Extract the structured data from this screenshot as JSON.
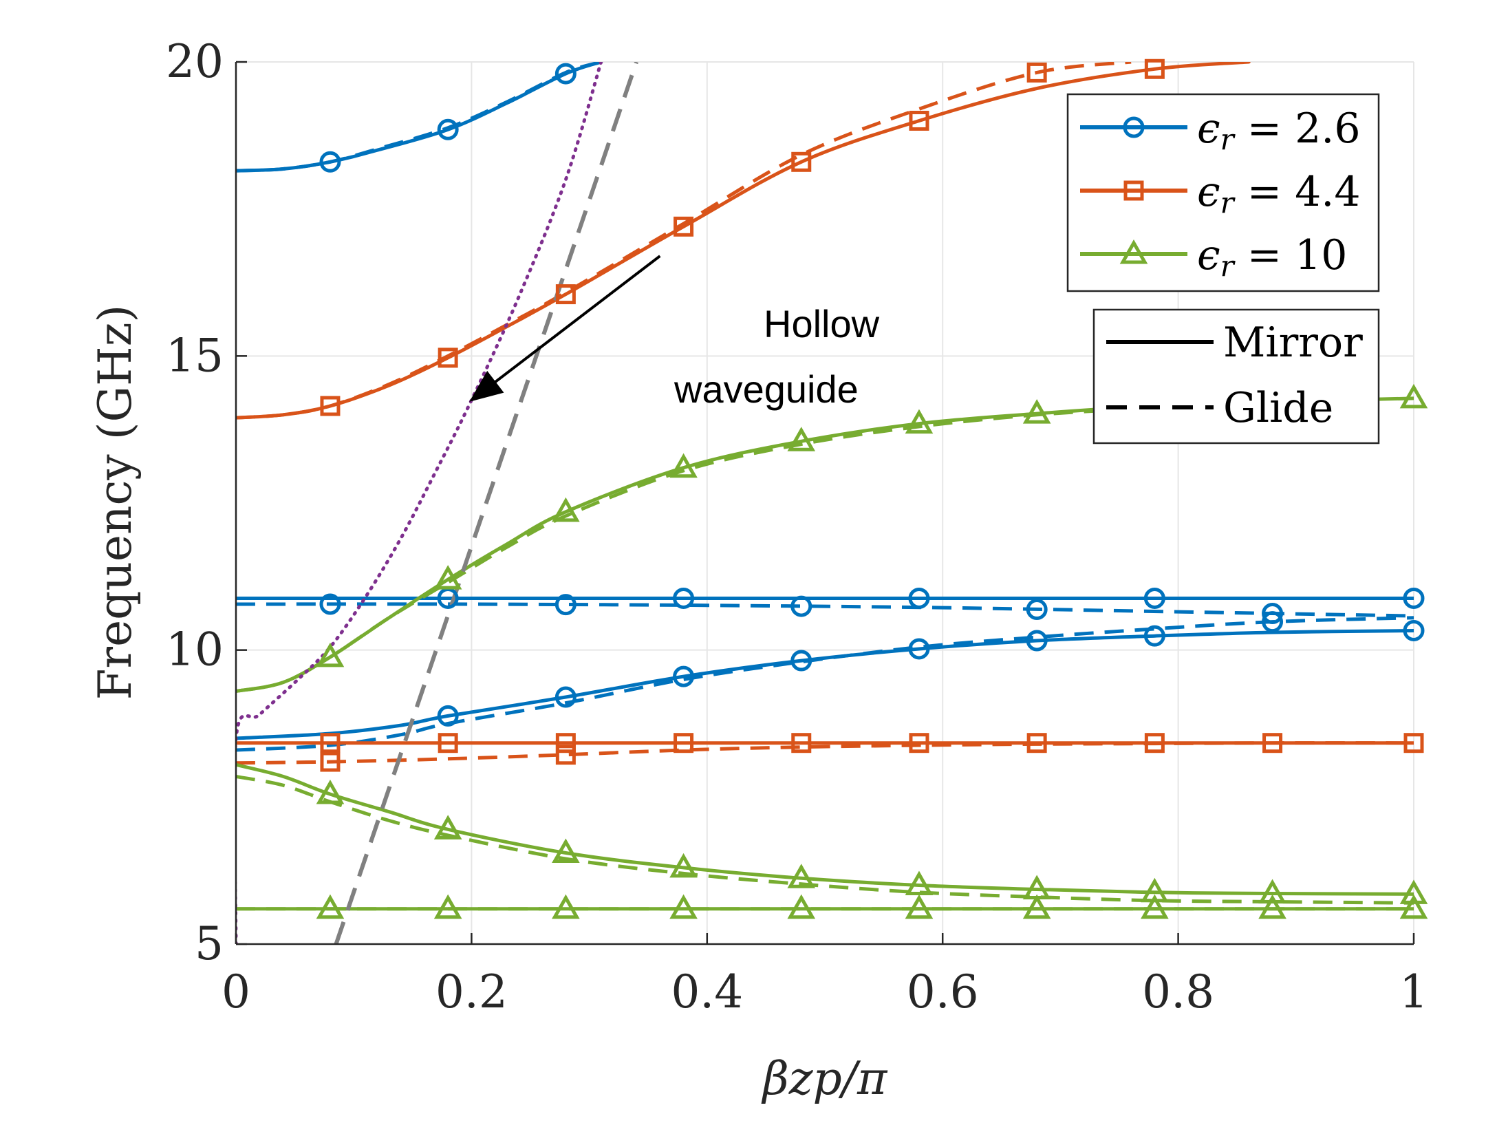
{
  "chart_data": {
    "type": "line",
    "title": "",
    "xlabel": "βzp/π",
    "ylabel": "Frequency (GHz)",
    "xlim": [
      0,
      1
    ],
    "ylim": [
      5,
      20
    ],
    "xticks": [
      0,
      0.2,
      0.4,
      0.6,
      0.8,
      1
    ],
    "yticks": [
      5,
      10,
      15,
      20
    ],
    "xtick_labels": [
      "0",
      "0.2",
      "0.4",
      "0.6",
      "0.8",
      "1"
    ],
    "ytick_labels": [
      "5",
      "10",
      "15",
      "20"
    ],
    "grid": true,
    "colors": {
      "er26": "#0072BD",
      "er44": "#D95319",
      "er10": "#77AC30",
      "hollow": "#7E2F8E",
      "light": "#808080"
    },
    "legend_materials": [
      {
        "label": "ϵr = 2.6",
        "prefix": "ϵ",
        "sub": "r",
        "value": "= 2.6",
        "color": "#0072BD",
        "marker": "circle"
      },
      {
        "label": "ϵr = 4.4",
        "prefix": "ϵ",
        "sub": "r",
        "value": "= 4.4",
        "color": "#D95319",
        "marker": "square"
      },
      {
        "label": "ϵr = 10",
        "prefix": "ϵ",
        "sub": "r",
        "value": "= 10",
        "color": "#77AC30",
        "marker": "triangle"
      }
    ],
    "legend_styles": [
      {
        "label": "Mirror",
        "dash": "solid"
      },
      {
        "label": "Glide",
        "dash": "dashed"
      }
    ],
    "annotation": {
      "line1": "Hollow",
      "line2": "waveguide",
      "arrow_from": [
        0.36,
        16.7
      ],
      "arrow_to": [
        0.2,
        14.25
      ]
    },
    "marker_x": [
      0,
      0.08,
      0.18,
      0.28,
      0.38,
      0.48,
      0.58,
      0.68,
      0.78,
      0.88,
      0.98,
      1.0
    ],
    "series": [
      {
        "name": "ϵr=2.6 Mirror mode 1",
        "material": "2.6",
        "style": "solid",
        "marker": "circle",
        "color": "#0072BD",
        "x": [
          0,
          0.04,
          0.08,
          0.12,
          0.18,
          0.23,
          0.28,
          0.31
        ],
        "y": [
          18.15,
          18.18,
          18.3,
          18.5,
          18.85,
          19.3,
          19.8,
          20.0
        ],
        "markers": [
          0.08,
          0.18,
          0.28
        ]
      },
      {
        "name": "ϵr=2.6 Glide mode 1",
        "material": "2.6",
        "style": "dashed",
        "marker": "circle",
        "color": "#0072BD",
        "x": [
          0,
          0.04,
          0.08,
          0.12,
          0.18,
          0.23,
          0.28,
          0.31
        ],
        "y": [
          18.15,
          18.18,
          18.3,
          18.52,
          18.88,
          19.32,
          19.82,
          20.0
        ],
        "markers": []
      },
      {
        "name": "ϵr=2.6 Mirror flat",
        "material": "2.6",
        "style": "solid",
        "marker": "circle",
        "color": "#0072BD",
        "x": [
          0,
          0.2,
          0.4,
          0.6,
          0.8,
          1.0
        ],
        "y": [
          10.88,
          10.88,
          10.88,
          10.88,
          10.88,
          10.88
        ],
        "markers": [
          0.18,
          0.38,
          0.58,
          0.78,
          1.0
        ]
      },
      {
        "name": "ϵr=2.6 Glide flat",
        "material": "2.6",
        "style": "dashed",
        "marker": "circle",
        "color": "#0072BD",
        "x": [
          0,
          0.2,
          0.4,
          0.6,
          0.8,
          1.0
        ],
        "y": [
          10.78,
          10.78,
          10.76,
          10.72,
          10.65,
          10.58
        ],
        "markers": [
          0.08,
          0.28,
          0.48,
          0.68,
          0.88
        ]
      },
      {
        "name": "ϵr=2.6 Mirror mode 2",
        "material": "2.6",
        "style": "solid",
        "marker": "circle",
        "color": "#0072BD",
        "x": [
          0,
          0.08,
          0.14,
          0.18,
          0.28,
          0.38,
          0.48,
          0.58,
          0.68,
          0.78,
          0.88,
          1.0
        ],
        "y": [
          8.5,
          8.58,
          8.72,
          8.88,
          9.2,
          9.55,
          9.82,
          10.02,
          10.16,
          10.24,
          10.3,
          10.33
        ],
        "markers": [
          0.18,
          0.28,
          0.38,
          0.48,
          0.58,
          0.68,
          0.78,
          1.0
        ]
      },
      {
        "name": "ϵr=2.6 Glide mode 2",
        "material": "2.6",
        "style": "dashed",
        "marker": "circle",
        "color": "#0072BD",
        "x": [
          0,
          0.08,
          0.14,
          0.18,
          0.28,
          0.38,
          0.48,
          0.58,
          0.68,
          0.78,
          0.88,
          1.0
        ],
        "y": [
          8.3,
          8.38,
          8.56,
          8.75,
          9.1,
          9.5,
          9.8,
          10.05,
          10.22,
          10.36,
          10.48,
          10.55
        ],
        "markers": [
          0.88
        ]
      },
      {
        "name": "ϵr=4.4 Mirror mode 1",
        "material": "4.4",
        "style": "solid",
        "marker": "square",
        "color": "#D95319",
        "x": [
          0,
          0.04,
          0.08,
          0.13,
          0.18,
          0.23,
          0.28,
          0.38,
          0.48,
          0.58,
          0.68,
          0.78,
          0.86
        ],
        "y": [
          13.95,
          14.0,
          14.15,
          14.5,
          14.97,
          15.5,
          16.05,
          17.2,
          18.3,
          19.0,
          19.55,
          19.88,
          20.0
        ],
        "markers": [
          0.08,
          0.18,
          0.28,
          0.38,
          0.48,
          0.58,
          0.78
        ]
      },
      {
        "name": "ϵr=4.4 Glide mode 1",
        "material": "4.4",
        "style": "dashed",
        "marker": "square",
        "color": "#D95319",
        "x": [
          0,
          0.04,
          0.08,
          0.13,
          0.18,
          0.23,
          0.28,
          0.38,
          0.48,
          0.58,
          0.68,
          0.76
        ],
        "y": [
          13.95,
          14.0,
          14.15,
          14.52,
          15.0,
          15.53,
          16.08,
          17.25,
          18.42,
          19.2,
          19.82,
          20.0
        ],
        "markers": [
          0.68
        ]
      },
      {
        "name": "ϵr=4.4 Mirror flat",
        "material": "4.4",
        "style": "solid",
        "marker": "square",
        "color": "#D95319",
        "x": [
          0,
          0.1,
          0.2,
          0.4,
          0.6,
          0.8,
          1.0
        ],
        "y": [
          8.42,
          8.42,
          8.42,
          8.42,
          8.42,
          8.42,
          8.42
        ],
        "markers": [
          0.08,
          0.18,
          0.28,
          0.38,
          0.48,
          0.58,
          0.68,
          0.78,
          0.88,
          1.0
        ]
      },
      {
        "name": "ϵr=4.4 Glide mode",
        "material": "4.4",
        "style": "dashed",
        "marker": "square",
        "color": "#D95319",
        "x": [
          0,
          0.08,
          0.18,
          0.28,
          0.38,
          0.48,
          0.58,
          0.68,
          0.78,
          0.88,
          1.0
        ],
        "y": [
          8.08,
          8.1,
          8.15,
          8.22,
          8.3,
          8.35,
          8.38,
          8.4,
          8.41,
          8.42,
          8.42
        ],
        "markers": [
          0.08,
          0.28
        ]
      },
      {
        "name": "ϵr=10 Mirror mode 1",
        "material": "10",
        "style": "solid",
        "marker": "triangle",
        "color": "#77AC30",
        "x": [
          0,
          0.04,
          0.08,
          0.13,
          0.18,
          0.23,
          0.28,
          0.38,
          0.48,
          0.58,
          0.68,
          0.78,
          0.88,
          1.0
        ],
        "y": [
          9.3,
          9.45,
          9.88,
          10.55,
          11.2,
          11.8,
          12.35,
          13.1,
          13.55,
          13.85,
          14.02,
          14.15,
          14.22,
          14.28
        ],
        "markers": [
          0.08,
          0.18,
          0.28,
          0.38,
          0.48,
          0.58,
          0.68,
          1.0
        ]
      },
      {
        "name": "ϵr=10 Glide mode 1",
        "material": "10",
        "style": "dashed",
        "marker": "triangle",
        "color": "#77AC30",
        "x": [
          0,
          0.04,
          0.08,
          0.13,
          0.18,
          0.23,
          0.28,
          0.38,
          0.48,
          0.58,
          0.68,
          0.78
        ],
        "y": [
          9.3,
          9.45,
          9.88,
          10.55,
          11.15,
          11.75,
          12.28,
          13.05,
          13.5,
          13.8,
          14.0,
          14.12
        ],
        "markers": []
      },
      {
        "name": "ϵr=10 Mirror mode 2",
        "material": "10",
        "style": "solid",
        "marker": "triangle",
        "color": "#77AC30",
        "x": [
          0,
          0.04,
          0.08,
          0.13,
          0.18,
          0.28,
          0.38,
          0.48,
          0.58,
          0.68,
          0.78,
          0.88,
          1.0
        ],
        "y": [
          8.05,
          7.85,
          7.55,
          7.25,
          6.95,
          6.55,
          6.3,
          6.12,
          6.0,
          5.93,
          5.88,
          5.86,
          5.85
        ],
        "markers": [
          0.08,
          0.18,
          0.28,
          0.38,
          0.48,
          0.58,
          0.68,
          0.78,
          0.88,
          1.0
        ]
      },
      {
        "name": "ϵr=10 Glide mode 2",
        "material": "10",
        "style": "dashed",
        "marker": "triangle",
        "color": "#77AC30",
        "x": [
          0,
          0.04,
          0.08,
          0.13,
          0.18,
          0.28,
          0.38,
          0.48,
          0.58,
          0.68,
          0.78,
          0.88,
          1.0
        ],
        "y": [
          7.85,
          7.7,
          7.42,
          7.1,
          6.85,
          6.45,
          6.2,
          6.02,
          5.88,
          5.8,
          5.74,
          5.72,
          5.7
        ],
        "markers": []
      },
      {
        "name": "ϵr=10 Mirror flat",
        "material": "10",
        "style": "solid",
        "marker": "triangle",
        "color": "#77AC30",
        "x": [
          0,
          0.2,
          0.4,
          0.6,
          0.8,
          1.0
        ],
        "y": [
          5.6,
          5.6,
          5.6,
          5.6,
          5.6,
          5.6
        ],
        "markers": [
          0.08,
          0.18,
          0.28,
          0.38,
          0.48,
          0.58,
          0.68,
          0.78,
          0.88,
          1.0
        ]
      },
      {
        "name": "ϵr=10 Glide flat",
        "material": "10",
        "style": "dashed",
        "marker": "triangle",
        "color": "#77AC30",
        "x": [
          0,
          0.2,
          0.4,
          0.6,
          0.8,
          1.0
        ],
        "y": [
          5.6,
          5.6,
          5.6,
          5.6,
          5.6,
          5.6
        ],
        "markers": []
      },
      {
        "name": "Hollow waveguide",
        "material": "",
        "style": "dotted",
        "marker": "none",
        "color": "#7E2F8E",
        "x": [
          0,
          0,
          0.02,
          0.05,
          0.08,
          0.11,
          0.14,
          0.17,
          0.2,
          0.24,
          0.28,
          0.31
        ],
        "y": [
          5.0,
          8.5,
          8.9,
          9.45,
          10.05,
          10.9,
          11.9,
          13.05,
          14.25,
          16.0,
          18.0,
          20.0
        ],
        "markers": []
      },
      {
        "name": "Light line",
        "material": "",
        "style": "greydash",
        "marker": "none",
        "color": "#808080",
        "x": [
          0.085,
          0.34
        ],
        "y": [
          5.0,
          20.0
        ],
        "markers": []
      }
    ]
  }
}
